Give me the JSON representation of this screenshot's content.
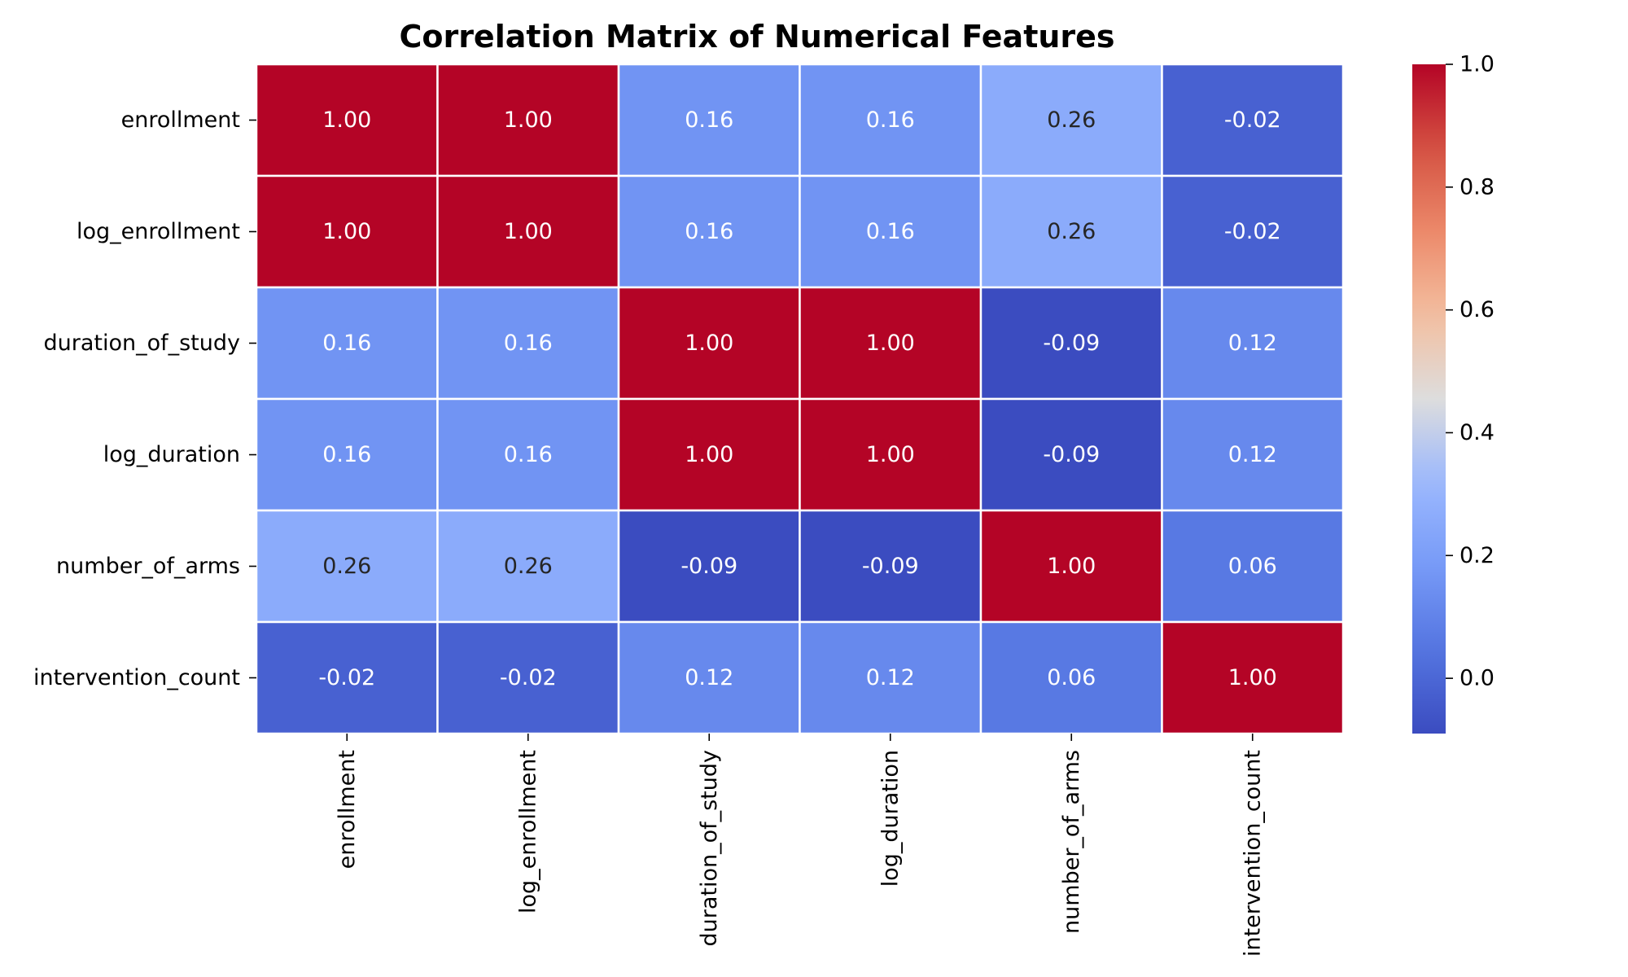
{
  "chart_data": {
    "type": "heatmap",
    "title": "Correlation Matrix of Numerical Features",
    "xlabel": "",
    "ylabel": "",
    "rows": [
      "enrollment",
      "log_enrollment",
      "duration_of_study",
      "log_duration",
      "number_of_arms",
      "intervention_count"
    ],
    "columns": [
      "enrollment",
      "log_enrollment",
      "duration_of_study",
      "log_duration",
      "number_of_arms",
      "intervention_count"
    ],
    "values": [
      [
        1.0,
        1.0,
        0.16,
        0.16,
        0.26,
        -0.02
      ],
      [
        1.0,
        1.0,
        0.16,
        0.16,
        0.26,
        -0.02
      ],
      [
        0.16,
        0.16,
        1.0,
        1.0,
        -0.09,
        0.12
      ],
      [
        0.16,
        0.16,
        1.0,
        1.0,
        -0.09,
        0.12
      ],
      [
        0.26,
        0.26,
        -0.09,
        -0.09,
        1.0,
        0.06
      ],
      [
        -0.02,
        -0.02,
        0.12,
        0.12,
        0.06,
        1.0
      ]
    ],
    "annotation_format": "2 decimals",
    "colormap": "coolwarm",
    "colorbar": {
      "range": [
        -0.09,
        1.0
      ],
      "ticks": [
        0.0,
        0.2,
        0.4,
        0.6,
        0.8,
        1.0
      ],
      "tick_labels": [
        "0.0",
        "0.2",
        "0.4",
        "0.6",
        "0.8",
        "1.0"
      ]
    },
    "grid": "white cell borders",
    "legend": "colorbar right"
  }
}
